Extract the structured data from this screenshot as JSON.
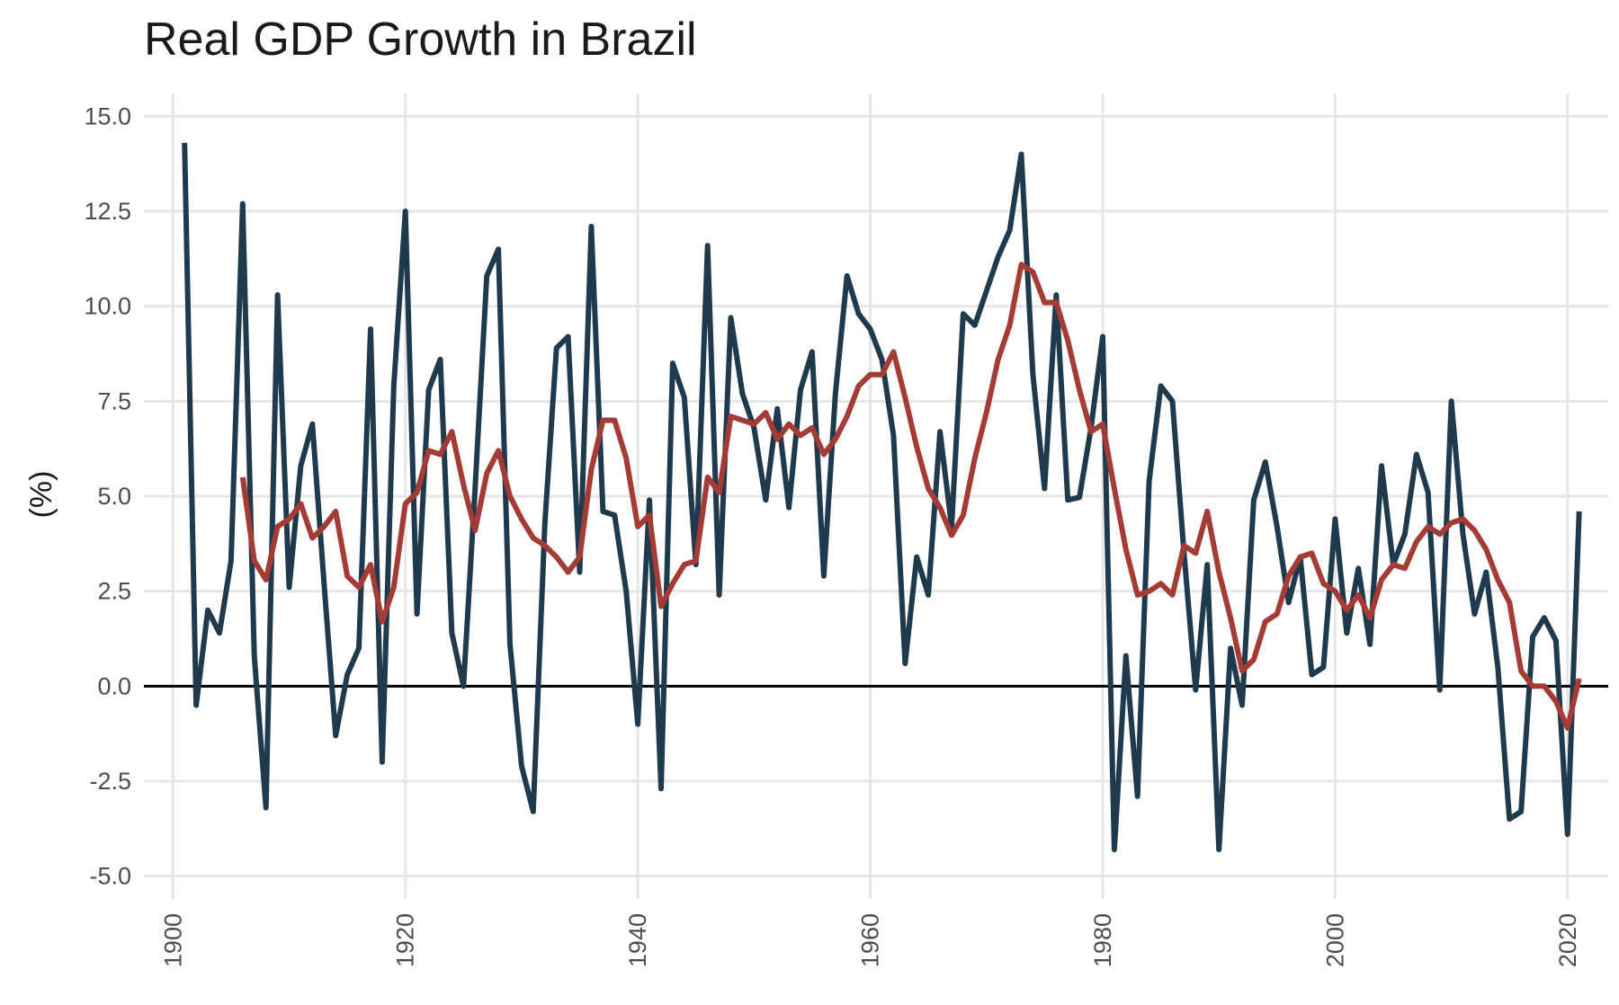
{
  "chart_data": {
    "type": "line",
    "title": "Real GDP Growth in Brazil",
    "xlabel": "",
    "ylabel": "(%)",
    "xlim": [
      1897.5,
      2023.5
    ],
    "ylim": [
      -5.6,
      15.6
    ],
    "x_ticks": [
      1900,
      1920,
      1940,
      1960,
      1980,
      2000,
      2020
    ],
    "x_tick_labels": [
      "1900",
      "1920",
      "1940",
      "1960",
      "1980",
      "2000",
      "2020"
    ],
    "y_ticks": [
      -5,
      -2.5,
      0,
      2.5,
      5,
      7.5,
      10,
      12.5,
      15
    ],
    "y_tick_labels": [
      "-5.0",
      "-2.5",
      "0.0",
      "2.5",
      "5.0",
      "7.5",
      "10.0",
      "12.5",
      "15.0"
    ],
    "grid": true,
    "zero_line": true,
    "legend": "none",
    "colors": {
      "series_1": "#1f3a4d",
      "series_2": "#a53b35",
      "grid": "#e6e6e6",
      "zero": "#000000"
    },
    "series": [
      {
        "x": [
          1901,
          1902,
          1903,
          1904,
          1905,
          1906,
          1907,
          1908,
          1909,
          1910,
          1911,
          1912,
          1913,
          1914,
          1915,
          1916,
          1917,
          1918,
          1919,
          1920,
          1921,
          1922,
          1923,
          1924,
          1925,
          1926,
          1927,
          1928,
          1929,
          1930,
          1931,
          1932,
          1933,
          1934,
          1935,
          1936,
          1937,
          1938,
          1939,
          1940,
          1941,
          1942,
          1943,
          1944,
          1945,
          1946,
          1947,
          1948,
          1949,
          1950,
          1951,
          1952,
          1953,
          1954,
          1955,
          1956,
          1957,
          1958,
          1959,
          1960,
          1961,
          1962,
          1963,
          1964,
          1965,
          1966,
          1967,
          1968,
          1969,
          1970,
          1971,
          1972,
          1973,
          1974,
          1975,
          1976,
          1977,
          1978,
          1979,
          1980,
          1981,
          1982,
          1983,
          1984,
          1985,
          1986,
          1987,
          1988,
          1989,
          1990,
          1991,
          1992,
          1993,
          1994,
          1995,
          1996,
          1997,
          1998,
          1999,
          2000,
          2001,
          2002,
          2003,
          2004,
          2005,
          2006,
          2007,
          2008,
          2009,
          2010,
          2011,
          2012,
          2013,
          2014,
          2015,
          2016,
          2017,
          2018,
          2019,
          2020,
          2021
        ],
        "values": [
          14.3,
          -0.5,
          2.0,
          1.4,
          3.3,
          12.7,
          0.8,
          -3.2,
          10.3,
          2.6,
          5.8,
          6.9,
          2.7,
          -1.3,
          0.3,
          1.0,
          9.4,
          -2.0,
          7.9,
          12.5,
          1.9,
          7.8,
          8.6,
          1.4,
          0.0,
          5.2,
          10.8,
          11.5,
          1.1,
          -2.1,
          -3.3,
          4.3,
          8.9,
          9.2,
          3.0,
          12.1,
          4.6,
          4.5,
          2.5,
          -1.0,
          4.9,
          -2.7,
          8.5,
          7.6,
          3.2,
          11.6,
          2.4,
          9.7,
          7.7,
          6.8,
          4.9,
          7.3,
          4.7,
          7.8,
          8.8,
          2.9,
          7.7,
          10.8,
          9.8,
          9.4,
          8.6,
          6.6,
          0.6,
          3.4,
          2.4,
          6.7,
          4.2,
          9.8,
          9.5,
          10.4,
          11.3,
          12.0,
          14.0,
          8.2,
          5.2,
          10.3,
          4.9,
          4.97,
          6.8,
          9.2,
          -4.3,
          0.8,
          -2.9,
          5.4,
          7.9,
          7.5,
          3.5,
          -0.1,
          3.2,
          -4.3,
          1.0,
          -0.5,
          4.9,
          5.9,
          4.2,
          2.2,
          3.4,
          0.3,
          0.5,
          4.4,
          1.4,
          3.1,
          1.1,
          5.8,
          3.2,
          4.0,
          6.1,
          5.1,
          -0.1,
          7.5,
          4.0,
          1.9,
          3.0,
          0.5,
          -3.5,
          -3.3,
          1.3,
          1.8,
          1.2,
          -3.9,
          4.6
        ]
      },
      {
        "x": [
          1906,
          1907,
          1908,
          1909,
          1910,
          1911,
          1912,
          1913,
          1914,
          1915,
          1916,
          1917,
          1918,
          1919,
          1920,
          1921,
          1922,
          1923,
          1924,
          1925,
          1926,
          1927,
          1928,
          1929,
          1930,
          1931,
          1932,
          1933,
          1934,
          1935,
          1936,
          1937,
          1938,
          1939,
          1940,
          1941,
          1942,
          1943,
          1944,
          1945,
          1946,
          1947,
          1948,
          1949,
          1950,
          1951,
          1952,
          1953,
          1954,
          1955,
          1956,
          1957,
          1958,
          1959,
          1960,
          1961,
          1962,
          1963,
          1964,
          1965,
          1966,
          1967,
          1968,
          1969,
          1970,
          1971,
          1972,
          1973,
          1974,
          1975,
          1976,
          1977,
          1978,
          1979,
          1980,
          1981,
          1982,
          1983,
          1984,
          1985,
          1986,
          1987,
          1988,
          1989,
          1990,
          1991,
          1992,
          1993,
          1994,
          1995,
          1996,
          1997,
          1998,
          1999,
          2000,
          2001,
          2002,
          2003,
          2004,
          2005,
          2006,
          2007,
          2008,
          2009,
          2010,
          2011,
          2012,
          2013,
          2014,
          2015,
          2016,
          2017,
          2018,
          2019,
          2020,
          2021
        ],
        "values": [
          5.5,
          3.3,
          2.8,
          4.2,
          4.4,
          4.8,
          3.9,
          4.2,
          4.6,
          2.9,
          2.6,
          3.2,
          1.7,
          2.6,
          4.8,
          5.1,
          6.2,
          6.1,
          6.7,
          5.3,
          4.1,
          5.6,
          6.2,
          5.0,
          4.4,
          3.9,
          3.7,
          3.4,
          3.0,
          3.4,
          5.7,
          7.0,
          7.0,
          6.0,
          4.2,
          4.5,
          2.1,
          2.7,
          3.2,
          3.3,
          5.5,
          5.1,
          7.1,
          7.0,
          6.9,
          7.2,
          6.5,
          6.9,
          6.6,
          6.8,
          6.1,
          6.5,
          7.1,
          7.9,
          8.2,
          8.2,
          8.8,
          7.6,
          6.3,
          5.2,
          4.7,
          3.97,
          4.5,
          6.0,
          7.2,
          8.6,
          9.5,
          11.1,
          10.9,
          10.1,
          10.1,
          9.1,
          7.8,
          6.7,
          6.9,
          5.2,
          3.6,
          2.4,
          2.5,
          2.7,
          2.4,
          3.7,
          3.5,
          4.6,
          3.0,
          1.8,
          0.4,
          0.7,
          1.7,
          1.9,
          2.9,
          3.4,
          3.5,
          2.7,
          2.5,
          2.0,
          2.4,
          1.8,
          2.8,
          3.2,
          3.1,
          3.8,
          4.2,
          4.0,
          4.3,
          4.4,
          4.1,
          3.6,
          2.8,
          2.2,
          0.4,
          0.0,
          0.0,
          -0.4,
          -1.1,
          0.2
        ]
      }
    ]
  }
}
